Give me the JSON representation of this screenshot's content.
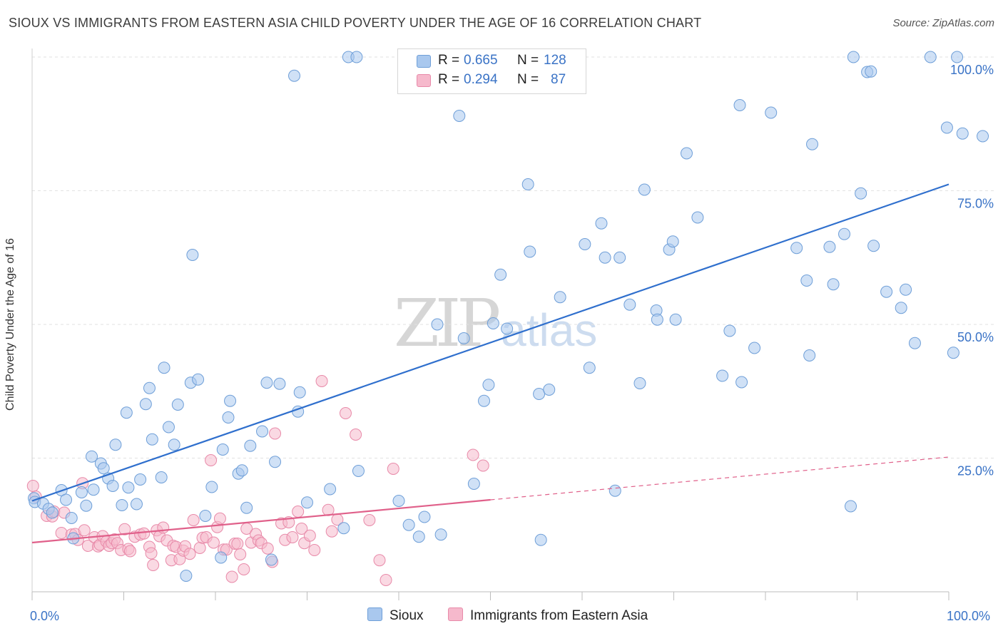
{
  "title": "SIOUX VS IMMIGRANTS FROM EASTERN ASIA CHILD POVERTY UNDER THE AGE OF 16 CORRELATION CHART",
  "source": "Source: ZipAtlas.com",
  "watermark": {
    "zip": "ZIP",
    "atlas": "atlas"
  },
  "legend": {
    "r_label": "R =",
    "n_label": "N =",
    "rows": [
      {
        "r": "0.665",
        "n": "128"
      },
      {
        "r": "0.294",
        "n": "87"
      }
    ]
  },
  "colors": {
    "sioux_fill": "#a9c8ee",
    "sioux_stroke": "#6f9fd8",
    "sioux_line": "#2f6fcd",
    "imm_fill": "#f6b9cc",
    "imm_stroke": "#e88aa9",
    "imm_line": "#e0608a",
    "axis_text": "#3a73c6"
  },
  "chart_data": {
    "type": "scatter",
    "title": "SIOUX VS IMMIGRANTS FROM EASTERN ASIA CHILD POVERTY UNDER THE AGE OF 16 CORRELATION CHART",
    "xlabel": "",
    "ylabel": "Child Poverty Under the Age of 16",
    "xlim": [
      0,
      100
    ],
    "ylim": [
      0,
      100
    ],
    "x_tick_labels": [
      "0.0%",
      "100.0%"
    ],
    "y_ticks": [
      25,
      50,
      75,
      100
    ],
    "y_tick_labels": [
      "25.0%",
      "50.0%",
      "75.0%",
      "100.0%"
    ],
    "grid": true,
    "legend_position": "top-center",
    "series": [
      {
        "name": "Sioux",
        "R": 0.665,
        "N": 128,
        "trend": {
          "x": [
            0,
            100
          ],
          "y": [
            17.0,
            76.2
          ],
          "dashed_to": null
        },
        "points": [
          [
            0.2,
            17.5
          ],
          [
            0.3,
            16.8
          ],
          [
            1.2,
            16.5
          ],
          [
            1.8,
            15.5
          ],
          [
            2.2,
            14.8
          ],
          [
            3.2,
            19.0
          ],
          [
            3.7,
            17.2
          ],
          [
            4.3,
            13.8
          ],
          [
            4.5,
            10.0
          ],
          [
            5.4,
            18.6
          ],
          [
            5.9,
            16.1
          ],
          [
            6.5,
            25.3
          ],
          [
            6.7,
            19.1
          ],
          [
            7.5,
            24.0
          ],
          [
            7.8,
            23.1
          ],
          [
            8.3,
            21.2
          ],
          [
            8.8,
            19.8
          ],
          [
            9.1,
            27.5
          ],
          [
            9.8,
            16.2
          ],
          [
            10.3,
            33.5
          ],
          [
            10.5,
            19.5
          ],
          [
            11.4,
            16.4
          ],
          [
            11.8,
            21.0
          ],
          [
            12.4,
            35.1
          ],
          [
            12.8,
            38.1
          ],
          [
            13.1,
            28.5
          ],
          [
            14.1,
            21.4
          ],
          [
            14.4,
            41.9
          ],
          [
            14.9,
            30.8
          ],
          [
            15.5,
            27.5
          ],
          [
            15.9,
            35.0
          ],
          [
            16.8,
            3.0
          ],
          [
            17.3,
            39.1
          ],
          [
            17.5,
            63.0
          ],
          [
            18.1,
            39.7
          ],
          [
            18.9,
            14.2
          ],
          [
            19.6,
            19.6
          ],
          [
            20.6,
            6.4
          ],
          [
            20.8,
            26.6
          ],
          [
            21.4,
            32.6
          ],
          [
            21.6,
            35.7
          ],
          [
            22.5,
            22.1
          ],
          [
            22.9,
            22.7
          ],
          [
            23.4,
            15.7
          ],
          [
            23.8,
            27.3
          ],
          [
            25.1,
            30.0
          ],
          [
            25.6,
            39.1
          ],
          [
            26.1,
            6.0
          ],
          [
            26.5,
            24.3
          ],
          [
            27.0,
            38.9
          ],
          [
            28.6,
            96.5
          ],
          [
            29.0,
            33.7
          ],
          [
            29.2,
            37.3
          ],
          [
            30.0,
            16.7
          ],
          [
            32.5,
            19.2
          ],
          [
            34.0,
            11.9
          ],
          [
            34.5,
            100.0
          ],
          [
            35.4,
            100.0
          ],
          [
            35.6,
            22.6
          ],
          [
            40.0,
            17.0
          ],
          [
            41.1,
            12.5
          ],
          [
            42.2,
            10.3
          ],
          [
            42.8,
            14.0
          ],
          [
            43.3,
            100.0
          ],
          [
            44.2,
            50.0
          ],
          [
            44.6,
            10.7
          ],
          [
            46.6,
            89.0
          ],
          [
            47.1,
            47.4
          ],
          [
            48.2,
            20.2
          ],
          [
            49.3,
            35.7
          ],
          [
            49.8,
            38.7
          ],
          [
            50.3,
            50.2
          ],
          [
            51.1,
            59.3
          ],
          [
            51.8,
            49.2
          ],
          [
            54.1,
            76.2
          ],
          [
            54.3,
            63.6
          ],
          [
            55.3,
            37.0
          ],
          [
            55.5,
            9.7
          ],
          [
            56.4,
            37.8
          ],
          [
            57.6,
            55.1
          ],
          [
            60.3,
            65.0
          ],
          [
            60.8,
            41.9
          ],
          [
            62.1,
            68.9
          ],
          [
            62.5,
            62.5
          ],
          [
            63.6,
            18.9
          ],
          [
            64.1,
            62.5
          ],
          [
            65.2,
            53.7
          ],
          [
            66.3,
            39.0
          ],
          [
            66.8,
            75.2
          ],
          [
            68.1,
            52.6
          ],
          [
            68.2,
            50.9
          ],
          [
            69.5,
            64.0
          ],
          [
            69.9,
            65.5
          ],
          [
            70.2,
            50.9
          ],
          [
            71.4,
            82.0
          ],
          [
            72.6,
            70.0
          ],
          [
            75.3,
            40.4
          ],
          [
            76.1,
            48.8
          ],
          [
            77.2,
            91.0
          ],
          [
            77.4,
            39.2
          ],
          [
            78.8,
            45.6
          ],
          [
            80.6,
            89.6
          ],
          [
            83.4,
            64.3
          ],
          [
            84.5,
            58.2
          ],
          [
            84.8,
            44.2
          ],
          [
            85.1,
            83.7
          ],
          [
            87.0,
            64.5
          ],
          [
            87.4,
            57.5
          ],
          [
            88.6,
            66.9
          ],
          [
            89.3,
            16.0
          ],
          [
            89.6,
            100.0
          ],
          [
            90.4,
            74.5
          ],
          [
            91.1,
            97.2
          ],
          [
            91.5,
            97.3
          ],
          [
            91.8,
            64.7
          ],
          [
            93.2,
            56.1
          ],
          [
            94.8,
            53.1
          ],
          [
            95.3,
            56.5
          ],
          [
            96.3,
            46.5
          ],
          [
            98.0,
            100.0
          ],
          [
            99.8,
            86.8
          ],
          [
            100.5,
            44.7
          ],
          [
            100.9,
            100.0
          ],
          [
            101.5,
            85.7
          ],
          [
            103.7,
            85.2
          ]
        ]
      },
      {
        "name": "Immigrants from Eastern Asia",
        "R": 0.294,
        "N": 87,
        "trend": {
          "x": [
            0,
            50
          ],
          "y": [
            9.2,
            17.2
          ],
          "dashed_x": [
            50,
            100
          ],
          "dashed_y": [
            17.2,
            25.2
          ]
        },
        "points": [
          [
            0.1,
            19.8
          ],
          [
            0.4,
            17.8
          ],
          [
            1.6,
            14.2
          ],
          [
            2.2,
            14.1
          ],
          [
            2.4,
            15.0
          ],
          [
            3.2,
            11.0
          ],
          [
            3.5,
            14.8
          ],
          [
            4.3,
            10.7
          ],
          [
            4.7,
            10.8
          ],
          [
            5.0,
            9.7
          ],
          [
            5.5,
            20.3
          ],
          [
            5.7,
            11.5
          ],
          [
            6.1,
            8.6
          ],
          [
            6.8,
            10.2
          ],
          [
            7.2,
            8.5
          ],
          [
            7.4,
            8.8
          ],
          [
            7.7,
            10.4
          ],
          [
            8.1,
            9.4
          ],
          [
            8.4,
            8.6
          ],
          [
            8.7,
            9.1
          ],
          [
            9.0,
            9.8
          ],
          [
            9.3,
            9.1
          ],
          [
            9.7,
            7.8
          ],
          [
            10.1,
            11.7
          ],
          [
            10.5,
            8.0
          ],
          [
            10.7,
            7.6
          ],
          [
            11.2,
            10.3
          ],
          [
            11.8,
            10.7
          ],
          [
            12.2,
            10.9
          ],
          [
            12.8,
            8.4
          ],
          [
            13.0,
            7.2
          ],
          [
            13.2,
            5.0
          ],
          [
            13.6,
            11.5
          ],
          [
            13.9,
            10.4
          ],
          [
            14.3,
            12.0
          ],
          [
            14.7,
            9.6
          ],
          [
            15.2,
            5.9
          ],
          [
            15.4,
            8.6
          ],
          [
            15.7,
            8.4
          ],
          [
            16.1,
            6.1
          ],
          [
            16.5,
            7.7
          ],
          [
            16.7,
            8.5
          ],
          [
            17.2,
            7.1
          ],
          [
            17.6,
            13.4
          ],
          [
            18.3,
            8.2
          ],
          [
            18.6,
            10.1
          ],
          [
            19.0,
            10.2
          ],
          [
            19.5,
            24.6
          ],
          [
            19.8,
            9.2
          ],
          [
            20.2,
            12.1
          ],
          [
            20.5,
            13.7
          ],
          [
            20.9,
            7.9
          ],
          [
            21.2,
            7.9
          ],
          [
            21.8,
            2.8
          ],
          [
            22.1,
            9.0
          ],
          [
            22.4,
            9.0
          ],
          [
            22.7,
            7.0
          ],
          [
            23.1,
            4.2
          ],
          [
            23.4,
            11.8
          ],
          [
            23.9,
            9.2
          ],
          [
            24.4,
            10.8
          ],
          [
            24.7,
            9.6
          ],
          [
            25.0,
            9.1
          ],
          [
            25.7,
            8.1
          ],
          [
            26.2,
            5.6
          ],
          [
            26.5,
            29.6
          ],
          [
            27.2,
            12.8
          ],
          [
            27.6,
            9.7
          ],
          [
            28.0,
            13.0
          ],
          [
            28.4,
            10.2
          ],
          [
            29.0,
            15.0
          ],
          [
            29.4,
            11.8
          ],
          [
            29.7,
            9.1
          ],
          [
            30.3,
            10.5
          ],
          [
            30.8,
            7.8
          ],
          [
            31.6,
            39.4
          ],
          [
            32.3,
            15.3
          ],
          [
            32.7,
            11.3
          ],
          [
            33.3,
            13.5
          ],
          [
            34.2,
            33.4
          ],
          [
            35.3,
            29.4
          ],
          [
            36.8,
            13.4
          ],
          [
            37.9,
            5.9
          ],
          [
            39.4,
            23.0
          ],
          [
            48.1,
            25.6
          ],
          [
            49.2,
            23.6
          ],
          [
            38.6,
            2.2
          ]
        ]
      }
    ]
  },
  "bottom_legend": [
    "Sioux",
    "Immigrants from Eastern Asia"
  ]
}
